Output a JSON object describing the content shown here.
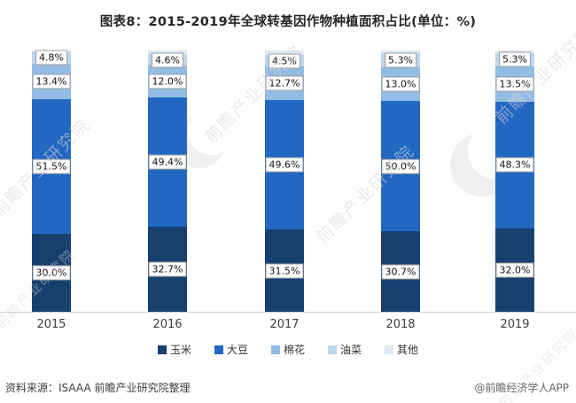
{
  "title": "图表8：2015-2019年全球转基因作物种植面积占比(单位：%)",
  "chart_data": {
    "type": "bar",
    "stacked": true,
    "title": "图表8：2015-2019年全球转基因作物种植面积占比(单位：%)",
    "unit": "%",
    "ylim": [
      0,
      100
    ],
    "grid": false,
    "legend_position": "bottom",
    "categories": [
      "2015",
      "2016",
      "2017",
      "2018",
      "2019"
    ],
    "series": [
      {
        "name": "玉米",
        "color": "#17406f",
        "show_label": true,
        "values": [
          30.0,
          32.7,
          31.5,
          30.7,
          32.0
        ]
      },
      {
        "name": "大豆",
        "color": "#2268c3",
        "show_label": true,
        "values": [
          51.5,
          49.4,
          49.6,
          50.0,
          48.3
        ]
      },
      {
        "name": "棉花",
        "color": "#93bce4",
        "show_label": true,
        "values": [
          13.4,
          12.0,
          12.7,
          13.0,
          13.5
        ]
      },
      {
        "name": "油菜",
        "color": "#bdd7ee",
        "show_label": true,
        "values": [
          4.8,
          4.6,
          4.5,
          5.3,
          5.3
        ]
      },
      {
        "name": "其他",
        "color": "#dfeaf6",
        "show_label": false,
        "values": [
          0.3,
          1.3,
          1.7,
          1.0,
          0.9
        ]
      }
    ],
    "data_label_format": "{value}%"
  },
  "footer": {
    "source": "资料来源：ISAAA 前瞻产业研究院整理",
    "credit": "@前瞻经济学人APP"
  },
  "watermark": {
    "text": "前瞻产业研究院"
  }
}
